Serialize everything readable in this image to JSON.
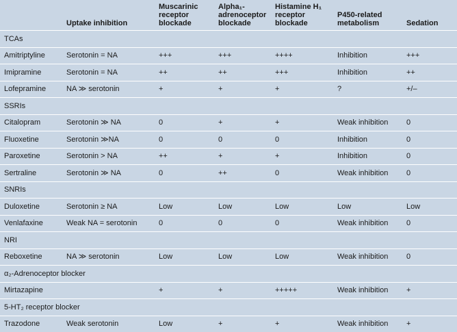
{
  "headers": [
    "",
    "Uptake inhibition",
    "Muscarinic receptor blockade",
    "Alpha₁-adrenoceptor blockade",
    "Histamine H₁ receptor blockade",
    "P450-related metabolism",
    "Sedation"
  ],
  "groups": [
    {
      "label": "TCAs",
      "rows": [
        [
          "Amitriptyline",
          "Serotonin = NA",
          "+++",
          "+++",
          "++++",
          "Inhibition",
          "+++"
        ],
        [
          "Imipramine",
          "Serotonin = NA",
          "++",
          "++",
          "+++",
          "Inhibition",
          "++"
        ],
        [
          "Lofepramine",
          "NA ≫ serotonin",
          "+",
          "+",
          "+",
          "?",
          "+/–"
        ]
      ]
    },
    {
      "label": "SSRIs",
      "rows": [
        [
          "Citalopram",
          "Serotonin ≫ NA",
          "0",
          "+",
          "+",
          "Weak inhibition",
          "0"
        ],
        [
          "Fluoxetine",
          "Serotonin ≫NA",
          "0",
          "0",
          "0",
          "Inhibition",
          "0"
        ],
        [
          "Paroxetine",
          "Serotonin > NA",
          "++",
          "+",
          "+",
          "Inhibition",
          "0"
        ],
        [
          "Sertraline",
          "Serotonin ≫ NA",
          "0",
          "++",
          "0",
          "Weak inhibition",
          "0"
        ]
      ]
    },
    {
      "label": "SNRIs",
      "rows": [
        [
          "Duloxetine",
          "Serotonin ≥ NA",
          "Low",
          "Low",
          "Low",
          "Low",
          "Low"
        ],
        [
          "Venlafaxine",
          "Weak NA = serotonin",
          "0",
          "0",
          "0",
          "Weak inhibition",
          "0"
        ]
      ]
    },
    {
      "label": "NRI",
      "rows": [
        [
          "Reboxetine",
          "NA ≫ serotonin",
          "Low",
          "Low",
          "Low",
          "Weak inhibition",
          "0"
        ]
      ]
    },
    {
      "label": "α₂-Adrenoceptor blocker",
      "rows": [
        [
          "Mirtazapine",
          "",
          "+",
          "+",
          "+++++",
          "Weak inhibition",
          "+"
        ]
      ]
    },
    {
      "label": "5-HT₂ receptor blocker",
      "rows": [
        [
          "Trazodone",
          "Weak serotonin",
          "Low",
          "+",
          "+",
          "Weak inhibition",
          "+"
        ]
      ]
    }
  ]
}
